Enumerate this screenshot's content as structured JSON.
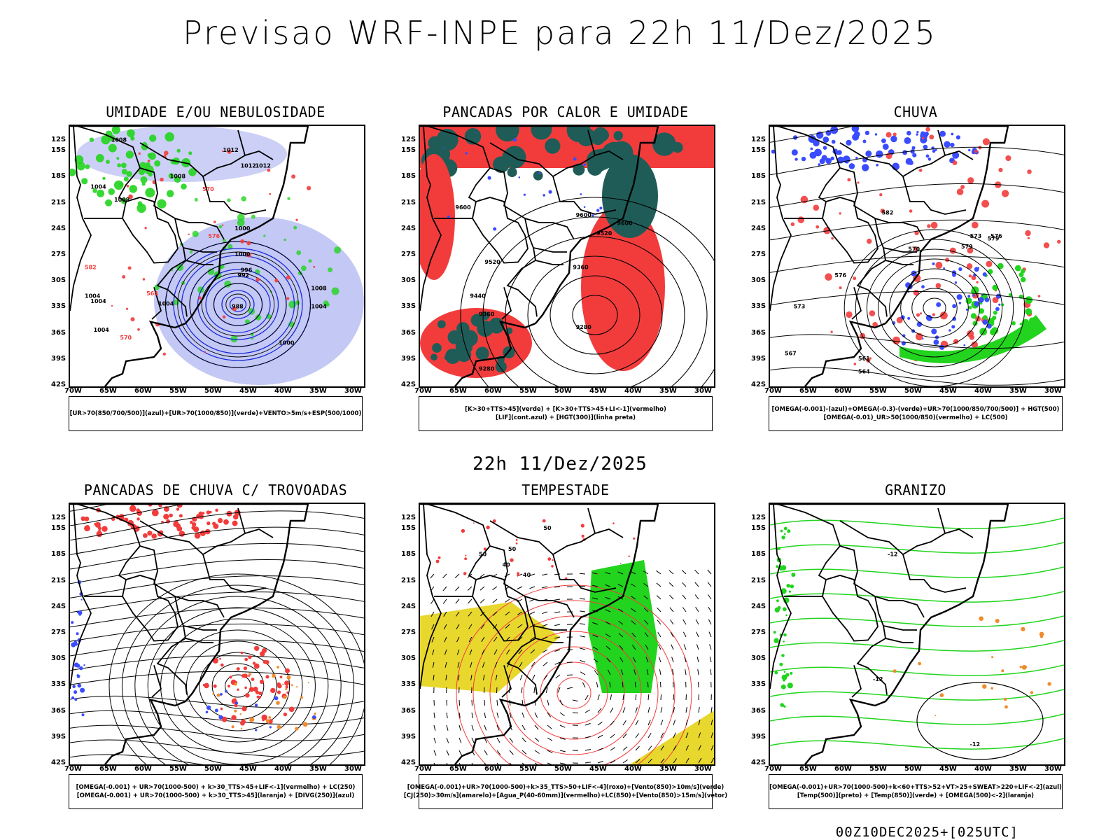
{
  "header": {
    "title": "Previsao WRF-INPE  para 22h 11/Dez/2025"
  },
  "mid_time": "22h 11/Dez/2025",
  "footer": "00Z10DEC2025+[025UTC]",
  "axes": {
    "lat_labels": [
      "12S",
      "15S",
      "18S",
      "21S",
      "24S",
      "27S",
      "30S",
      "33S",
      "36S",
      "39S",
      "42S"
    ],
    "lon_labels": [
      "70W",
      "65W",
      "60W",
      "55W",
      "50W",
      "45W",
      "40W",
      "35W",
      "30W"
    ]
  },
  "colors": {
    "blue": "#3a4cff",
    "green": "#22d41e",
    "red": "#f23c3c",
    "darkgreen": "#1f5c57",
    "orange": "#f08a2a",
    "yellow": "#e8d82e",
    "lavender": "#aab0f0"
  },
  "panels": [
    {
      "title": "UMIDADE E/OU NEBULOSIDADE",
      "legend": [
        "[UR>70(850/700/500)](azul)+[UR>70(1000/850)](verde)+VENTO>5m/s+ESP(500/1000)"
      ],
      "labels": [
        "1008",
        "1012",
        "1012",
        "1012",
        "1008",
        "1008",
        "1004",
        "1000",
        "1004",
        "1000",
        "1004",
        "996",
        "992",
        "988",
        "1000",
        "1008",
        "1004",
        "1004",
        "1004",
        "570",
        "576",
        "582",
        "564",
        "570"
      ]
    },
    {
      "title": "PANCADAS POR CALOR E UMIDADE",
      "legend": [
        "[K>30+TTS>45](verde) + [K>30+TTS>45+LI<-1](vermelho)",
        "[LIF](cont.azul) + [HGT(300)](linha preta)"
      ],
      "labels": [
        "9600",
        "9600",
        "9520",
        "9600",
        "9520",
        "9440",
        "9360",
        "9280",
        "9360",
        "9280"
      ]
    },
    {
      "title": "CHUVA",
      "legend": [
        "[OMEGA(-0.001)-(azul)+OMEGA(-0.3)-(verde)+UR>70(1000/850/700/500)] + HGT(500)",
        "[OMEGA(-0.01)_UR>50(1000/850)(vermelho) + LC(500)"
      ],
      "labels": [
        "582",
        "579",
        "576",
        "573",
        "570",
        "567",
        "564",
        "561",
        "576",
        "573",
        "579"
      ]
    },
    {
      "title": "PANCADAS DE CHUVA C/ TROVOADAS",
      "legend": [
        "[OMEGA(-0.001) + UR>70(1000-500) + k>30_TTS>45+LIF<-1](vermelho) + LC(250)",
        "[OMEGA(-0.001) + UR>70(1000-500) + k>30_TTS>45](laranja) + [DIVG(250)](azul)"
      ],
      "labels": []
    },
    {
      "title": "TEMPESTADE",
      "legend": [
        "[OMEGA(-0.001)+UR>70(1000-500)+k>35_TTS>50+LIF<-4](roxo)+[Vento(850)>10m/s](verde)",
        "[CJ(250)>30m/s](amarelo)+[Agua_P(40-60mm)](vermelho)+LC(850)+[Vento(850)>15m/s](vetor)"
      ],
      "labels": [
        "50",
        "50",
        "40",
        "40",
        "50"
      ]
    },
    {
      "title": "GRANIZO",
      "legend": [
        "[OMEGA(-0.001)+UR>70(1000-500)+k<60+TTS>52+VT>25+SWEAT>220+LIF<-2](azul)",
        "[Temp(500)](preto) + [Temp(850)](verde) + [OMEGA(500)<-2](laranja)"
      ],
      "labels": [
        "-12",
        "-12",
        "-12"
      ]
    }
  ]
}
